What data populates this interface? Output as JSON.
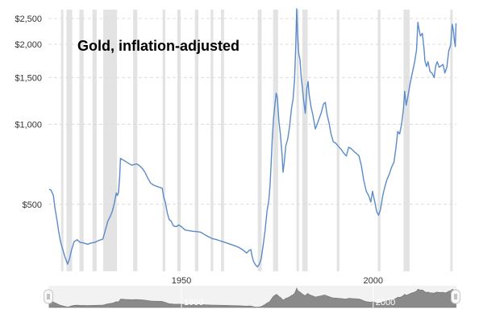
{
  "chart_data": {
    "type": "line",
    "title": "Gold, inflation-adjusted",
    "y_scale": "log",
    "ylim": [
      280,
      2700
    ],
    "xlim": [
      1915.3,
      2021.7
    ],
    "y_ticks": [
      {
        "value": 500,
        "label": "$500"
      },
      {
        "value": 1000,
        "label": "$1,000"
      },
      {
        "value": 1500,
        "label": "$1,500"
      },
      {
        "value": 2000,
        "label": "$2,000"
      },
      {
        "value": 2500,
        "label": "$2,500"
      }
    ],
    "x_ticks": [
      {
        "value": 1950,
        "label": "1950"
      },
      {
        "value": 2000,
        "label": "2000"
      }
    ],
    "navigator_labels": [
      "1950",
      "2000"
    ],
    "grid": true,
    "line_color": "#5b8bc9",
    "recession_color": "#e3e3e3",
    "recessions": [
      [
        1918.6,
        1919.2
      ],
      [
        1920.0,
        1921.5
      ],
      [
        1923.4,
        1924.5
      ],
      [
        1926.8,
        1927.9
      ],
      [
        1929.6,
        1933.2
      ],
      [
        1937.4,
        1938.5
      ],
      [
        1945.1,
        1945.8
      ],
      [
        1948.9,
        1949.8
      ],
      [
        1953.5,
        1954.4
      ],
      [
        1957.6,
        1958.3
      ],
      [
        1960.3,
        1961.1
      ],
      [
        1969.9,
        1970.9
      ],
      [
        1973.9,
        1975.2
      ],
      [
        1980.0,
        1980.5
      ],
      [
        1981.5,
        1982.9
      ],
      [
        1990.5,
        1991.2
      ],
      [
        2001.2,
        2001.9
      ],
      [
        2007.9,
        2009.5
      ],
      [
        2020.1,
        2020.4
      ]
    ],
    "series": [
      {
        "values": [
          [
            1915.5,
            570
          ],
          [
            1916.0,
            565
          ],
          [
            1916.6,
            540
          ],
          [
            1917.0,
            485
          ],
          [
            1917.5,
            440
          ],
          [
            1918.0,
            395
          ],
          [
            1918.5,
            360
          ],
          [
            1919.0,
            340
          ],
          [
            1919.6,
            318
          ],
          [
            1920.3,
            298
          ],
          [
            1920.8,
            312
          ],
          [
            1921.3,
            335
          ],
          [
            1922.0,
            362
          ],
          [
            1922.8,
            368
          ],
          [
            1923.5,
            360
          ],
          [
            1924.5,
            358
          ],
          [
            1925.5,
            354
          ],
          [
            1926.5,
            358
          ],
          [
            1927.5,
            360
          ],
          [
            1928.3,
            365
          ],
          [
            1929.0,
            368
          ],
          [
            1929.5,
            370
          ],
          [
            1930.0,
            392
          ],
          [
            1930.8,
            432
          ],
          [
            1931.5,
            452
          ],
          [
            1932.0,
            472
          ],
          [
            1932.5,
            505
          ],
          [
            1933.0,
            552
          ],
          [
            1933.3,
            540
          ],
          [
            1933.6,
            555
          ],
          [
            1933.9,
            643
          ],
          [
            1934.1,
            745
          ],
          [
            1934.5,
            738
          ],
          [
            1935.0,
            732
          ],
          [
            1935.6,
            722
          ],
          [
            1936.3,
            712
          ],
          [
            1937.0,
            702
          ],
          [
            1937.8,
            707
          ],
          [
            1938.3,
            710
          ],
          [
            1939.0,
            700
          ],
          [
            1939.8,
            682
          ],
          [
            1940.5,
            660
          ],
          [
            1941.2,
            628
          ],
          [
            1942.0,
            600
          ],
          [
            1942.8,
            590
          ],
          [
            1943.5,
            585
          ],
          [
            1944.2,
            580
          ],
          [
            1945.0,
            575
          ],
          [
            1945.4,
            530
          ],
          [
            1945.8,
            510
          ],
          [
            1946.3,
            465
          ],
          [
            1946.8,
            438
          ],
          [
            1947.3,
            433
          ],
          [
            1947.9,
            415
          ],
          [
            1948.6,
            412
          ],
          [
            1949.3,
            418
          ],
          [
            1950.0,
            412
          ],
          [
            1951.0,
            400
          ],
          [
            1952.0,
            398
          ],
          [
            1953.0,
            396
          ],
          [
            1954.0,
            395
          ],
          [
            1955.0,
            393
          ],
          [
            1956.0,
            385
          ],
          [
            1957.0,
            378
          ],
          [
            1958.0,
            372
          ],
          [
            1959.0,
            369
          ],
          [
            1960.0,
            365
          ],
          [
            1961.0,
            361
          ],
          [
            1962.0,
            357
          ],
          [
            1963.0,
            353
          ],
          [
            1964.0,
            349
          ],
          [
            1965.0,
            344
          ],
          [
            1966.0,
            337
          ],
          [
            1967.0,
            328
          ],
          [
            1967.6,
            335
          ],
          [
            1968.1,
            338
          ],
          [
            1968.4,
            320
          ],
          [
            1968.8,
            305
          ],
          [
            1969.3,
            296
          ],
          [
            1969.8,
            291
          ],
          [
            1970.3,
            298
          ],
          [
            1970.8,
            312
          ],
          [
            1971.3,
            350
          ],
          [
            1971.8,
            398
          ],
          [
            1972.3,
            470
          ],
          [
            1972.8,
            520
          ],
          [
            1973.1,
            590
          ],
          [
            1973.4,
            720
          ],
          [
            1973.7,
            890
          ],
          [
            1974.0,
            1050
          ],
          [
            1974.4,
            1200
          ],
          [
            1974.7,
            1310
          ],
          [
            1975.0,
            1260
          ],
          [
            1975.4,
            1030
          ],
          [
            1975.8,
            920
          ],
          [
            1976.2,
            780
          ],
          [
            1976.5,
            660
          ],
          [
            1976.8,
            720
          ],
          [
            1977.2,
            830
          ],
          [
            1977.7,
            880
          ],
          [
            1978.2,
            980
          ],
          [
            1978.7,
            1150
          ],
          [
            1979.1,
            1240
          ],
          [
            1979.5,
            1480
          ],
          [
            1979.8,
            1950
          ],
          [
            1980.05,
            2720
          ],
          [
            1980.3,
            2150
          ],
          [
            1980.6,
            1840
          ],
          [
            1980.9,
            1750
          ],
          [
            1981.2,
            1520
          ],
          [
            1981.6,
            1340
          ],
          [
            1981.9,
            1220
          ],
          [
            1982.3,
            1100
          ],
          [
            1982.7,
            1360
          ],
          [
            1983.0,
            1450
          ],
          [
            1983.3,
            1290
          ],
          [
            1983.8,
            1160
          ],
          [
            1984.3,
            1080
          ],
          [
            1984.9,
            960
          ],
          [
            1985.5,
            1010
          ],
          [
            1986.0,
            1060
          ],
          [
            1986.5,
            1110
          ],
          [
            1987.0,
            1190
          ],
          [
            1987.5,
            1210
          ],
          [
            1987.9,
            1100
          ],
          [
            1988.5,
            1010
          ],
          [
            1989.0,
            920
          ],
          [
            1989.6,
            860
          ],
          [
            1990.2,
            850
          ],
          [
            1990.8,
            830
          ],
          [
            1991.5,
            810
          ],
          [
            1992.3,
            780
          ],
          [
            1993.0,
            760
          ],
          [
            1993.6,
            820
          ],
          [
            1994.3,
            810
          ],
          [
            1995.0,
            790
          ],
          [
            1995.7,
            775
          ],
          [
            1996.3,
            760
          ],
          [
            1996.9,
            700
          ],
          [
            1997.5,
            620
          ],
          [
            1998.2,
            560
          ],
          [
            1998.8,
            540
          ],
          [
            1999.4,
            510
          ],
          [
            1999.8,
            560
          ],
          [
            2000.3,
            520
          ],
          [
            2000.9,
            470
          ],
          [
            2001.4,
            455
          ],
          [
            2001.9,
            478
          ],
          [
            2002.5,
            540
          ],
          [
            2003.0,
            580
          ],
          [
            2003.6,
            620
          ],
          [
            2004.2,
            650
          ],
          [
            2004.8,
            690
          ],
          [
            2005.4,
            720
          ],
          [
            2005.9,
            810
          ],
          [
            2006.4,
            940
          ],
          [
            2006.9,
            920
          ],
          [
            2007.4,
            1000
          ],
          [
            2007.9,
            1150
          ],
          [
            2008.2,
            1330
          ],
          [
            2008.6,
            1180
          ],
          [
            2009.0,
            1260
          ],
          [
            2009.6,
            1420
          ],
          [
            2010.2,
            1560
          ],
          [
            2010.8,
            1720
          ],
          [
            2011.3,
            1900
          ],
          [
            2011.65,
            2420
          ],
          [
            2011.9,
            2300
          ],
          [
            2012.3,
            2150
          ],
          [
            2012.8,
            2200
          ],
          [
            2013.2,
            1960
          ],
          [
            2013.5,
            1730
          ],
          [
            2013.9,
            1650
          ],
          [
            2014.3,
            1720
          ],
          [
            2014.8,
            1580
          ],
          [
            2015.3,
            1560
          ],
          [
            2015.9,
            1500
          ],
          [
            2016.3,
            1660
          ],
          [
            2016.7,
            1720
          ],
          [
            2017.2,
            1640
          ],
          [
            2017.7,
            1660
          ],
          [
            2018.2,
            1680
          ],
          [
            2018.7,
            1560
          ],
          [
            2019.2,
            1640
          ],
          [
            2019.7,
            1890
          ],
          [
            2020.2,
            1990
          ],
          [
            2020.6,
            2380
          ],
          [
            2020.9,
            2260
          ],
          [
            2021.2,
            2050
          ],
          [
            2021.4,
            1960
          ],
          [
            2021.6,
            2400
          ]
        ]
      }
    ]
  }
}
